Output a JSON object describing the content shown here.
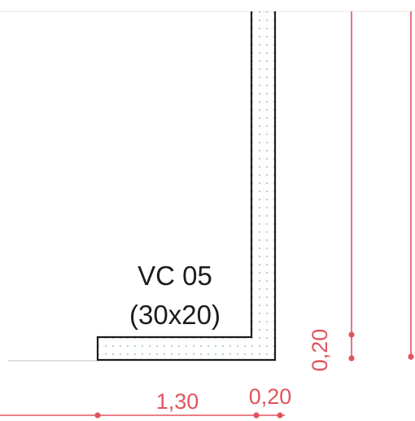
{
  "beam": {
    "name": "VC 05",
    "size": "(30x20)"
  },
  "dimensions": {
    "horizontal_length": "1,30",
    "horizontal_width": "0,20",
    "vertical_width": "0,20"
  },
  "colors": {
    "outline": "#1c1c1c",
    "dimension": "#e0555f",
    "hatch_dots": "#7fb2a4",
    "faint_line": "#cfcfcf"
  }
}
